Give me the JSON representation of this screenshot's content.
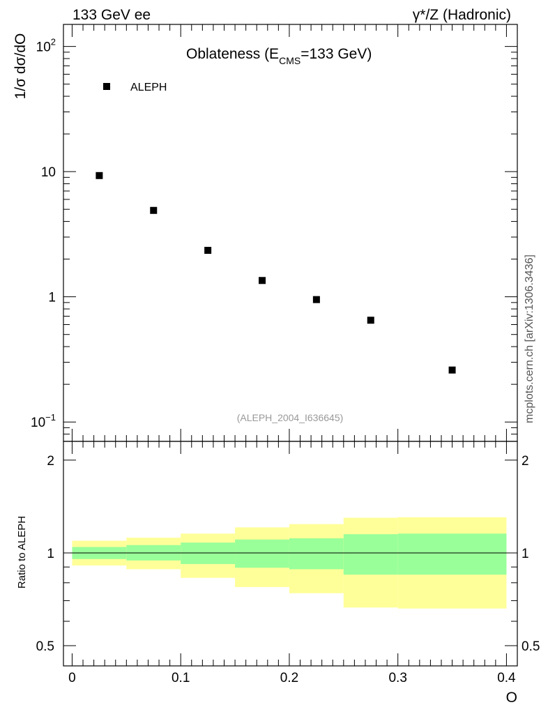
{
  "header": {
    "left": "133 GeV ee",
    "right": "γ*/Z (Hadronic)"
  },
  "watermark": "mcplots.cern.ch [arXiv:1306.3436]",
  "chart_data": [
    {
      "type": "scatter",
      "title_main": "Oblateness (E",
      "title_sub": "CMS",
      "title_tail": "=133 GeV)",
      "ylabel": "1/σ  dσ/dO",
      "yscale": "log",
      "ylim": [
        0.07,
        150
      ],
      "xlim": [
        -0.008,
        0.41
      ],
      "y_tick_labels": [
        {
          "value": 100,
          "base": "10",
          "exp": "2"
        },
        {
          "value": 10,
          "base": "10",
          "exp": ""
        },
        {
          "value": 1,
          "base": "1",
          "exp": ""
        },
        {
          "value": 0.1,
          "base": "10",
          "exp": "−1"
        }
      ],
      "legend": "ALEPH",
      "legend_position": "top-left",
      "reference_label": "(ALEPH_2004_I636645)",
      "series": [
        {
          "name": "ALEPH",
          "x": [
            0.025,
            0.075,
            0.125,
            0.175,
            0.225,
            0.275,
            0.35
          ],
          "y": [
            9.3,
            4.9,
            2.35,
            1.35,
            0.95,
            0.65,
            0.26
          ]
        }
      ]
    },
    {
      "type": "area",
      "ylabel": "Ratio to ALEPH",
      "yscale": "log",
      "ylim": [
        0.43,
        2.3
      ],
      "xlim": [
        -0.008,
        0.41
      ],
      "y_ticks": [
        "2",
        "1",
        "0.5"
      ],
      "y_tick_values": [
        2,
        1,
        0.5
      ],
      "xlabel": "O",
      "x_ticks": [
        "0",
        "0.1",
        "0.2",
        "0.3",
        "0.4"
      ],
      "x_tick_values": [
        0,
        0.1,
        0.2,
        0.3,
        0.4
      ],
      "bins": [
        {
          "x0": 0.0,
          "x1": 0.05,
          "inner_lo": 0.955,
          "inner_hi": 1.045,
          "outer_lo": 0.91,
          "outer_hi": 1.095
        },
        {
          "x0": 0.05,
          "x1": 0.1,
          "inner_lo": 0.945,
          "inner_hi": 1.06,
          "outer_lo": 0.885,
          "outer_hi": 1.12
        },
        {
          "x0": 0.1,
          "x1": 0.15,
          "inner_lo": 0.92,
          "inner_hi": 1.08,
          "outer_lo": 0.83,
          "outer_hi": 1.155
        },
        {
          "x0": 0.15,
          "x1": 0.2,
          "inner_lo": 0.895,
          "inner_hi": 1.105,
          "outer_lo": 0.775,
          "outer_hi": 1.21
        },
        {
          "x0": 0.2,
          "x1": 0.25,
          "inner_lo": 0.885,
          "inner_hi": 1.115,
          "outer_lo": 0.74,
          "outer_hi": 1.24
        },
        {
          "x0": 0.25,
          "x1": 0.3,
          "inner_lo": 0.85,
          "inner_hi": 1.15,
          "outer_lo": 0.665,
          "outer_hi": 1.3
        },
        {
          "x0": 0.3,
          "x1": 0.4,
          "inner_lo": 0.85,
          "inner_hi": 1.155,
          "outer_lo": 0.66,
          "outer_hi": 1.305
        }
      ],
      "inner_color": "#99ff99",
      "outer_color": "#ffff99",
      "reference_line": 1
    }
  ]
}
